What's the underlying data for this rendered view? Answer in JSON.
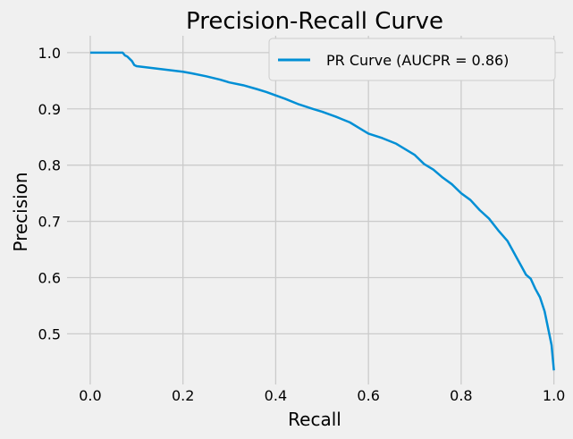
{
  "chart_data": {
    "type": "line",
    "title": "Precision-Recall Curve",
    "xlabel": "Recall",
    "ylabel": "Precision",
    "xlim": [
      -0.05,
      1.02
    ],
    "ylim": [
      0.41,
      1.03
    ],
    "xticks": [
      0.0,
      0.2,
      0.4,
      0.6,
      0.8,
      1.0
    ],
    "xtick_labels": [
      "0.0",
      "0.2",
      "0.4",
      "0.6",
      "0.8",
      "1.0"
    ],
    "yticks": [
      0.5,
      0.6,
      0.7,
      0.8,
      0.9,
      1.0
    ],
    "ytick_labels": [
      "0.5",
      "0.6",
      "0.7",
      "0.8",
      "0.9",
      "1.0"
    ],
    "grid": true,
    "legend_position": "top-right",
    "series": [
      {
        "name": "PR Curve (AUCPR = 0.86)",
        "color": "#008fd5",
        "x": [
          0.0,
          0.02,
          0.04,
          0.06,
          0.07,
          0.075,
          0.08,
          0.09,
          0.095,
          0.1,
          0.12,
          0.14,
          0.16,
          0.18,
          0.2,
          0.22,
          0.25,
          0.28,
          0.3,
          0.33,
          0.36,
          0.38,
          0.4,
          0.42,
          0.45,
          0.48,
          0.5,
          0.53,
          0.56,
          0.58,
          0.6,
          0.63,
          0.66,
          0.68,
          0.7,
          0.72,
          0.74,
          0.76,
          0.78,
          0.8,
          0.82,
          0.84,
          0.86,
          0.88,
          0.9,
          0.91,
          0.92,
          0.93,
          0.94,
          0.95,
          0.96,
          0.97,
          0.98,
          0.985,
          0.99,
          0.995,
          1.0
        ],
        "y": [
          1.0,
          1.0,
          1.0,
          1.0,
          1.0,
          0.995,
          0.993,
          0.985,
          0.978,
          0.976,
          0.974,
          0.972,
          0.97,
          0.968,
          0.966,
          0.963,
          0.958,
          0.952,
          0.947,
          0.942,
          0.935,
          0.93,
          0.924,
          0.918,
          0.908,
          0.9,
          0.895,
          0.886,
          0.876,
          0.866,
          0.856,
          0.848,
          0.838,
          0.828,
          0.818,
          0.802,
          0.792,
          0.778,
          0.766,
          0.75,
          0.738,
          0.72,
          0.705,
          0.684,
          0.665,
          0.65,
          0.635,
          0.62,
          0.605,
          0.598,
          0.58,
          0.565,
          0.54,
          0.52,
          0.5,
          0.48,
          0.435
        ]
      }
    ]
  }
}
